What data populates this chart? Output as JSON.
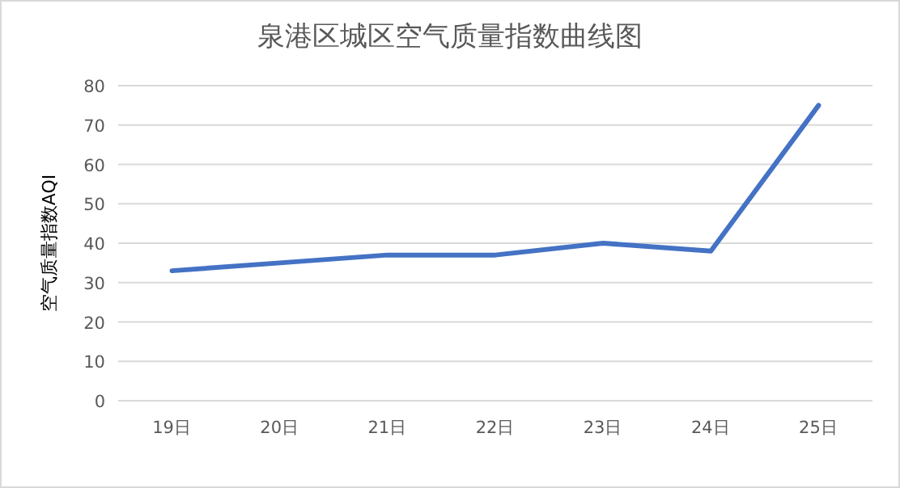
{
  "chart_data": {
    "type": "line",
    "title": "泉港区城区空气质量指数曲线图",
    "ylabel": "空气质量指数AQI",
    "categories": [
      "19日",
      "20日",
      "21日",
      "22日",
      "23日",
      "24日",
      "25日"
    ],
    "series": [
      {
        "color": "#4472c4",
        "values": [
          33,
          35,
          37,
          37,
          40,
          38,
          75
        ]
      }
    ],
    "ylim": [
      0,
      80
    ],
    "yticks": [
      0,
      10,
      20,
      30,
      40,
      50,
      60,
      70,
      80
    ],
    "grid": "y",
    "marker": "none",
    "line_style": "solid"
  }
}
